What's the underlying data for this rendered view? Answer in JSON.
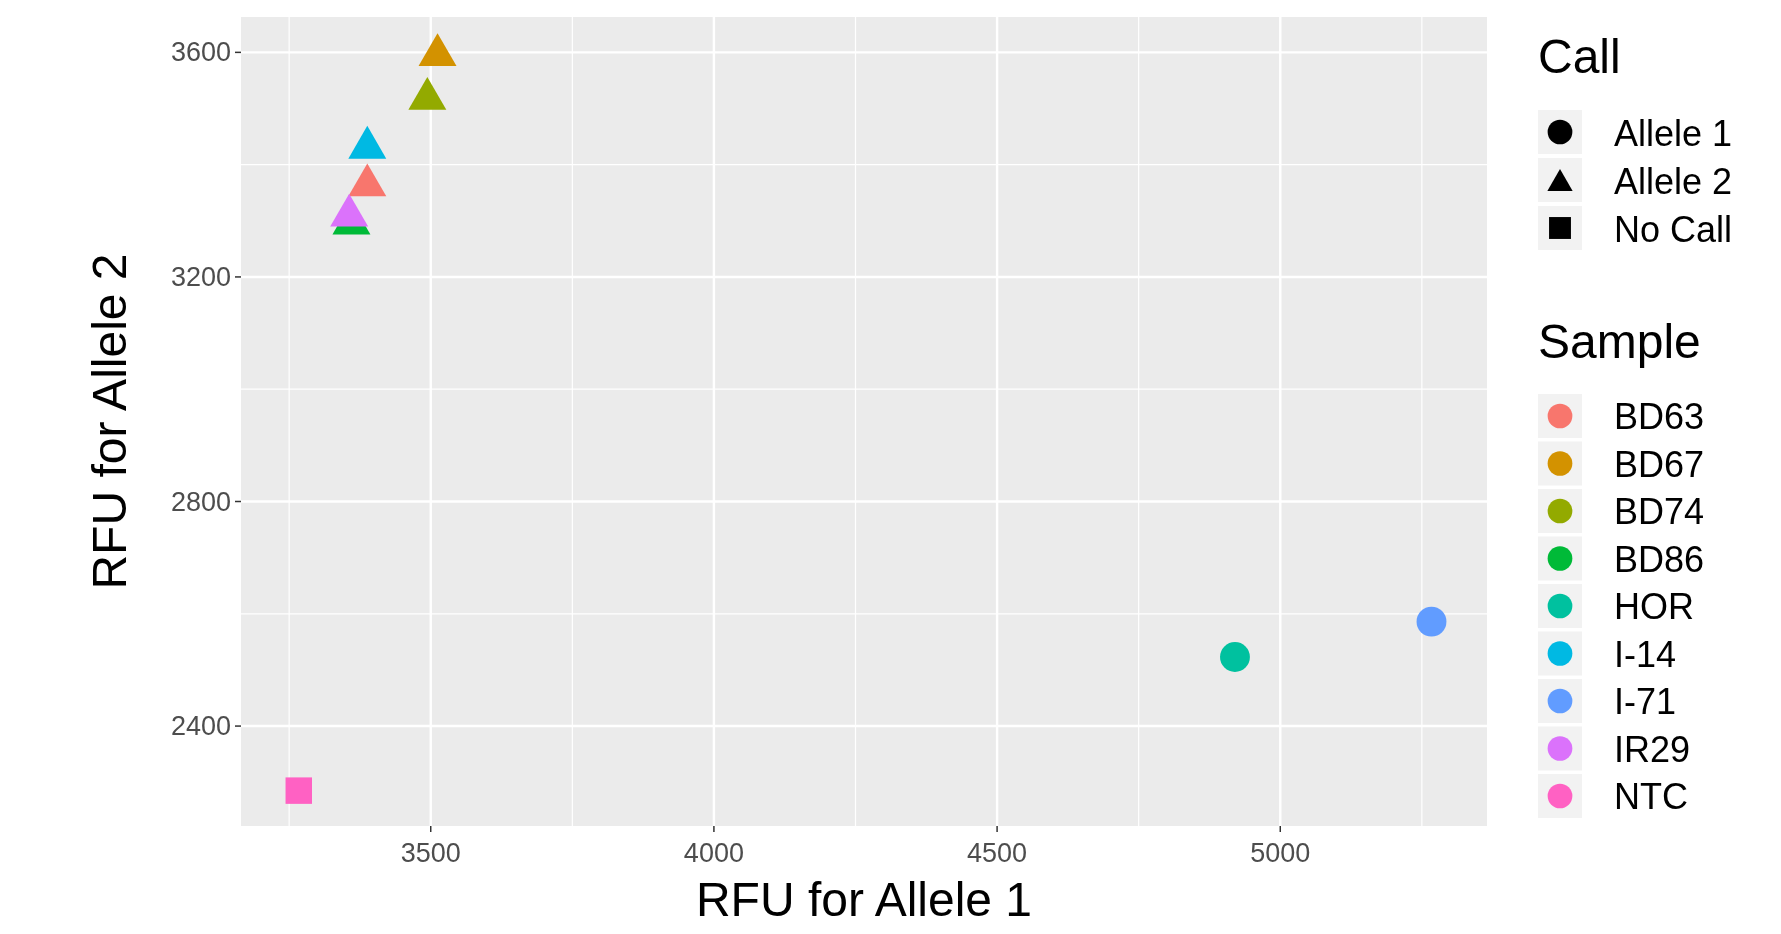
{
  "chart_data": {
    "type": "scatter",
    "xlabel": "RFU for Allele 1",
    "ylabel": "RFU for Allele 2",
    "legend_title": "Sample",
    "legend": "right",
    "grid": true,
    "xlim": [
      3165,
      5365
    ],
    "xticks": [
      3500,
      4000,
      4500,
      5000
    ],
    "ylim": [
      2222,
      3663
    ],
    "yticks": [
      2400,
      2800,
      3200,
      3600
    ],
    "annotations": [
      "Call",
      "Allele 1",
      "Allele 2",
      "No Call"
    ],
    "series": [
      {
        "name": "BD63",
        "color": "#f8766d",
        "marker": "triangle",
        "x": [
          3388
        ],
        "values": [
          3373
        ]
      },
      {
        "name": "BD67",
        "color": "#d39200",
        "marker": "triangle",
        "x": [
          3512
        ],
        "values": [
          3605
        ]
      },
      {
        "name": "BD74",
        "color": "#93aa00",
        "marker": "triangle",
        "x": [
          3494
        ],
        "values": [
          3527
        ]
      },
      {
        "name": "BD86",
        "color": "#00ba38",
        "marker": "triangle",
        "x": [
          3360
        ],
        "values": [
          3305
        ]
      },
      {
        "name": "HOR",
        "color": "#00c19f",
        "marker": "circle",
        "x": [
          4920
        ],
        "values": [
          2523
        ]
      },
      {
        "name": "I-14",
        "color": "#00b9e3",
        "marker": "triangle",
        "x": [
          3388
        ],
        "values": [
          3440
        ]
      },
      {
        "name": "I-71",
        "color": "#619cff",
        "marker": "circle",
        "x": [
          5267
        ],
        "values": [
          2586
        ]
      },
      {
        "name": "IR29",
        "color": "#db72fb",
        "marker": "triangle",
        "x": [
          3356
        ],
        "values": [
          3319
        ]
      },
      {
        "name": "NTC",
        "color": "#ff61c3",
        "marker": "square",
        "x": [
          3267
        ],
        "values": [
          2285
        ]
      }
    ]
  }
}
